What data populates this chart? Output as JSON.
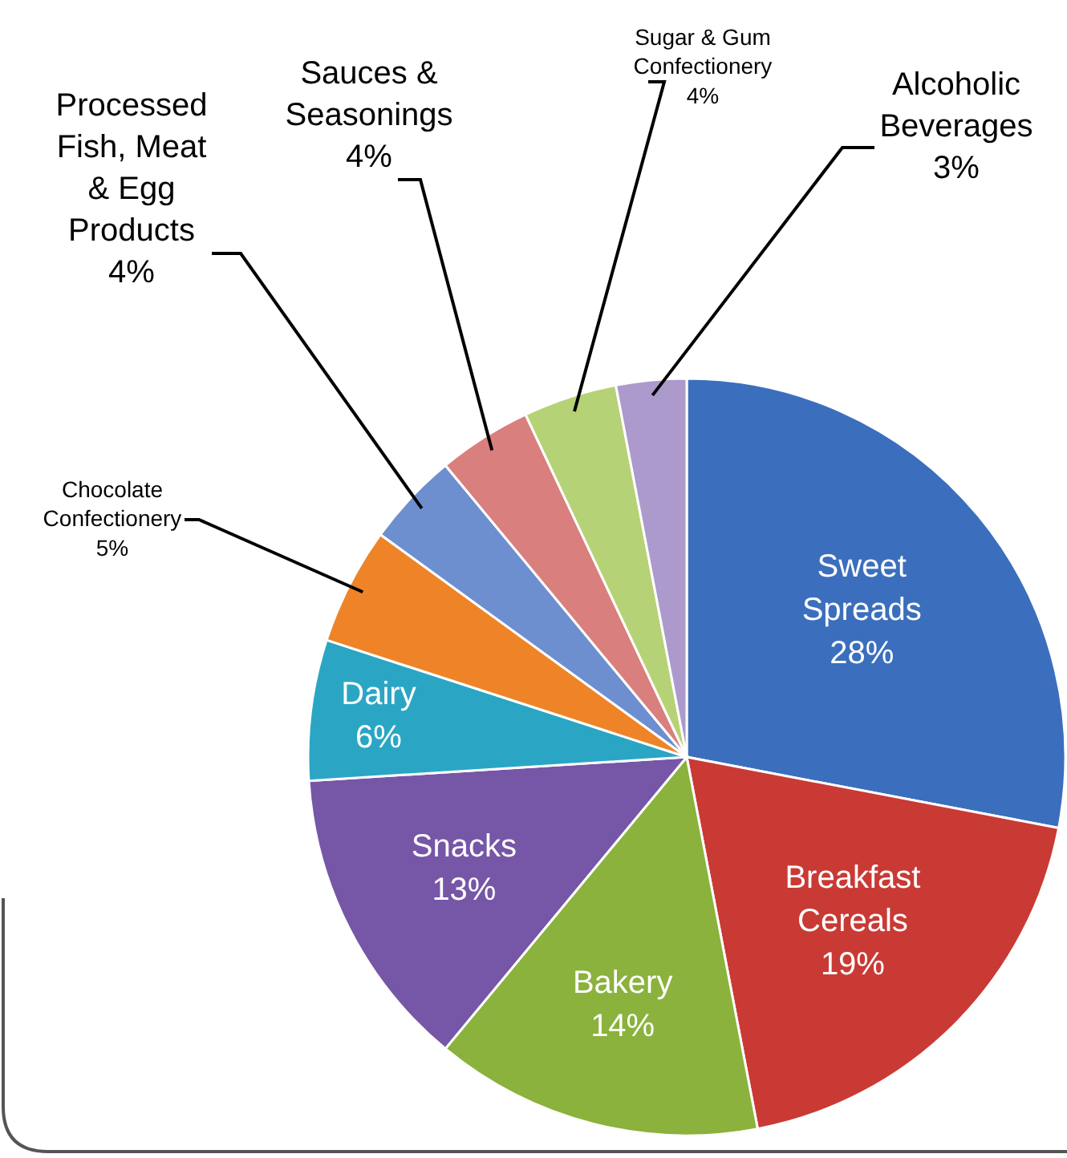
{
  "chart_data": {
    "type": "pie",
    "categories": [
      "Sweet\nSpreads",
      "Breakfast\nCereals",
      "Bakery",
      "Snacks",
      "Dairy",
      "Chocolate\nConfectionery",
      "Processed\nFish, Meat\n& Egg\nProducts",
      "Sauces &\nSeasonings",
      "Sugar & Gum\nConfectionery",
      "Alcoholic\nBeverages"
    ],
    "values": [
      28,
      19,
      14,
      13,
      6,
      5,
      4,
      4,
      4,
      3
    ],
    "value_labels": [
      "28%",
      "19%",
      "14%",
      "13%",
      "6%",
      "5%",
      "4%",
      "4%",
      "4%",
      "3%"
    ],
    "colors": [
      "#3b6fbd",
      "#c93a35",
      "#8ab23c",
      "#7656a6",
      "#2aa6c4",
      "#ee8427",
      "#6d8fcf",
      "#d97f7d",
      "#b6d276",
      "#ab9acb"
    ]
  }
}
